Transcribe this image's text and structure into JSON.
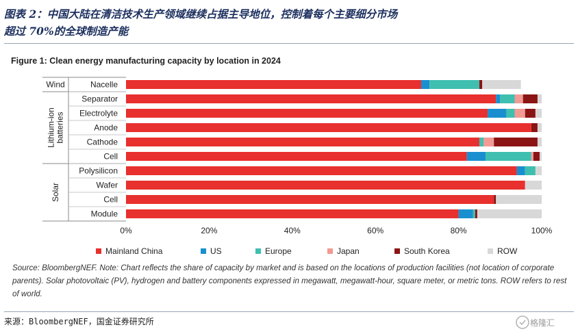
{
  "header": {
    "title_line1": "图表 2：中国大陆在清洁技术生产领域继续占据主导地位，控制着每个主要细分市场",
    "title_line2": "超过 70%的全球制造产能"
  },
  "figure": {
    "title": "Figure 1:  Clean energy manufacturing capacity by location in 2024",
    "source_note": "Source: BloombergNEF. Note: Chart reflects the share of capacity by market and is based on the locations of production facilities (not location of corporate parents). Solar photovoltaic (PV), hydrogen and battery components expressed in megawatt, megawatt-hour, square meter, or metric tons. ROW refers to rest of world."
  },
  "footer": {
    "source": "来源：BloombergNEF，国金证券研究所",
    "watermark": "格隆汇"
  },
  "chart_data": {
    "type": "bar",
    "orientation": "horizontal",
    "stacked": true,
    "groups": [
      {
        "label": "Wind",
        "categories": [
          "Nacelle"
        ]
      },
      {
        "label": "Lithium-ion batteries",
        "categories": [
          "Separator",
          "Electrolyte",
          "Anode",
          "Cathode",
          "Cell"
        ]
      },
      {
        "label": "Solar",
        "categories": [
          "Polysilicon",
          "Wafer",
          "Cell",
          "Module"
        ]
      }
    ],
    "categories": [
      "Nacelle",
      "Separator",
      "Electrolyte",
      "Anode",
      "Cathode",
      "Cell",
      "Polysilicon",
      "Wafer",
      "Cell",
      "Module"
    ],
    "series": [
      {
        "name": "Mainland China",
        "color": "#e8302e",
        "values": [
          71,
          89,
          87,
          97.5,
          85,
          82,
          94,
          96,
          88.5,
          80
        ]
      },
      {
        "name": "US",
        "color": "#1a8fd0",
        "values": [
          2,
          1,
          4.5,
          0,
          0,
          4.5,
          2,
          0,
          0,
          3.5
        ]
      },
      {
        "name": "Europe",
        "color": "#3fbfb0",
        "values": [
          12,
          3.5,
          2,
          0,
          1,
          11,
          2.5,
          0,
          0,
          0.5
        ]
      },
      {
        "name": "Japan",
        "color": "#f29a94",
        "values": [
          0,
          2,
          2.5,
          0,
          2.5,
          0.5,
          0,
          0,
          0,
          0
        ]
      },
      {
        "name": "South Korea",
        "color": "#8b1414",
        "values": [
          0.7,
          3.5,
          2.5,
          1.5,
          10.5,
          1.5,
          0,
          0,
          0.5,
          0.5
        ]
      },
      {
        "name": "ROW",
        "color": "#d8d8d8",
        "values": [
          9.3,
          1,
          1.5,
          1,
          1,
          0.5,
          1.5,
          4,
          11,
          15.5
        ]
      }
    ],
    "x_ticks": [
      "0%",
      "20%",
      "40%",
      "60%",
      "80%",
      "100%"
    ],
    "xlim": [
      0,
      100
    ],
    "legend_position": "bottom",
    "grid": false
  }
}
